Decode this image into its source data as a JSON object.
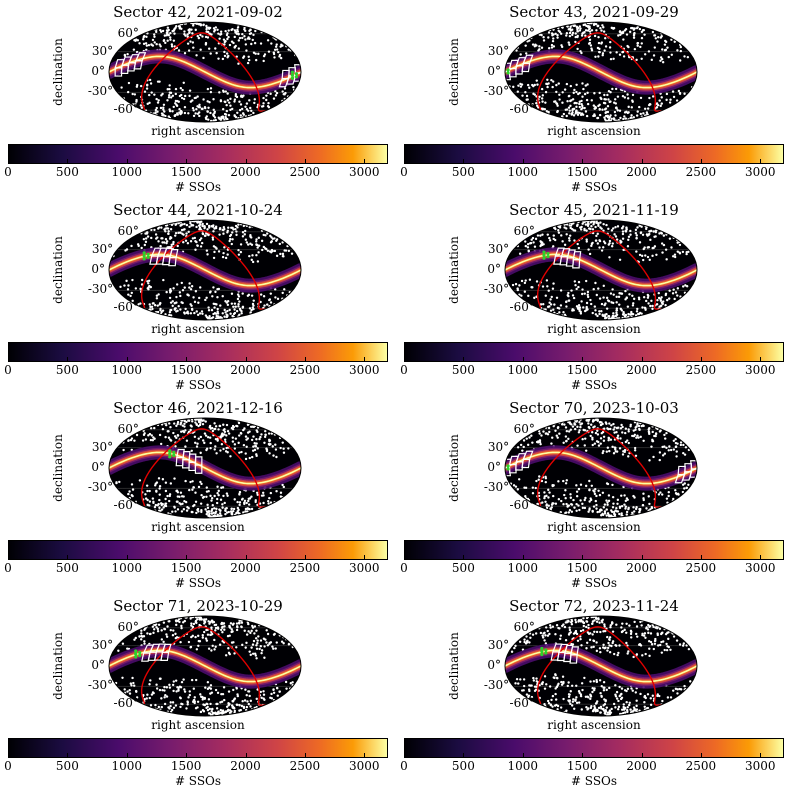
{
  "chart_data": [
    {
      "type": "heatmap",
      "title": "Sector 42, 2021-09-02",
      "footprint_lon": 145,
      "footprint_lon2": -170,
      "green_lon": -168
    },
    {
      "type": "heatmap",
      "title": "Sector 43, 2021-09-29",
      "footprint_lon": 160,
      "green_lon": 178
    },
    {
      "type": "heatmap",
      "title": "Sector 44, 2021-10-24",
      "footprint_lon": 80,
      "green_lon": 115
    },
    {
      "type": "heatmap",
      "title": "Sector 45, 2021-11-19",
      "footprint_lon": 65,
      "green_lon": 108
    },
    {
      "type": "heatmap",
      "title": "Sector 46, 2021-12-16",
      "footprint_lon": 30,
      "green_lon": 65
    },
    {
      "type": "heatmap",
      "title": "Sector 70, 2023-10-03",
      "footprint_lon": 160,
      "footprint_lon2": -170,
      "green_lon": 178
    },
    {
      "type": "heatmap",
      "title": "Sector 71, 2023-10-29",
      "footprint_lon": 95,
      "green_lon": 130
    },
    {
      "type": "heatmap",
      "title": "Sector 72, 2023-11-24",
      "footprint_lon": 70,
      "green_lon": 112
    }
  ],
  "axes": {
    "ylabel": "declination",
    "xlabel": "right ascension",
    "dec_ticks": [
      "60°",
      "30°",
      "0°",
      "-30°",
      "-60°"
    ]
  },
  "colorbar": {
    "label": "# SSOs",
    "ticks": [
      "0",
      "500",
      "1000",
      "1500",
      "2000",
      "2500",
      "3000"
    ],
    "tick_values": [
      0,
      500,
      1000,
      1500,
      2000,
      2500,
      3000
    ],
    "vmin": 0,
    "vmax": 3200,
    "colormap": "inferno"
  },
  "colors": {
    "ecliptic_band": "#f6c85a",
    "galactic_plane": "#e00000",
    "footprint": "#ffffff",
    "green": "#2bd12b"
  }
}
